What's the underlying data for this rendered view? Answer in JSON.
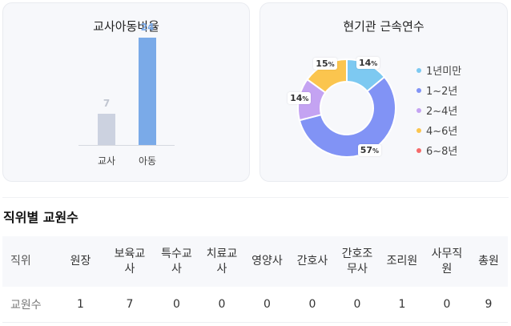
{
  "ratio_card": {
    "title": "교사아동비율",
    "chart_data": {
      "type": "bar",
      "categories": [
        "교사",
        "아동"
      ],
      "values": [
        7,
        24
      ],
      "colors": [
        "#ccd2e0",
        "#7aaae8"
      ],
      "label_colors": [
        "#c1c6d1",
        "#7aaae8"
      ],
      "ylim": [
        0,
        24
      ]
    }
  },
  "tenure_card": {
    "title": "현기관 근속연수",
    "chart_data": {
      "type": "pie",
      "categories": [
        "1년미만",
        "1~2년",
        "2~4년",
        "4~6년",
        "6~8년"
      ],
      "values": [
        14,
        57,
        14,
        15,
        0
      ],
      "colors": [
        "#7dc9f1",
        "#8193f5",
        "#c4a3f2",
        "#fbc54e",
        "#f56a6a"
      ],
      "labels": [
        "14",
        "57",
        "14",
        "15"
      ],
      "label_unit": "%"
    }
  },
  "staff_section": {
    "title": "직위별 교원수",
    "header_label": "직위",
    "columns": [
      "원장",
      "보육교사",
      "특수교사",
      "치료교사",
      "영양사",
      "간호사",
      "간호조무사",
      "조리원",
      "사무직원",
      "총원"
    ],
    "row_label": "교원수",
    "values": [
      "1",
      "7",
      "0",
      "0",
      "0",
      "0",
      "0",
      "1",
      "0",
      "9"
    ]
  }
}
